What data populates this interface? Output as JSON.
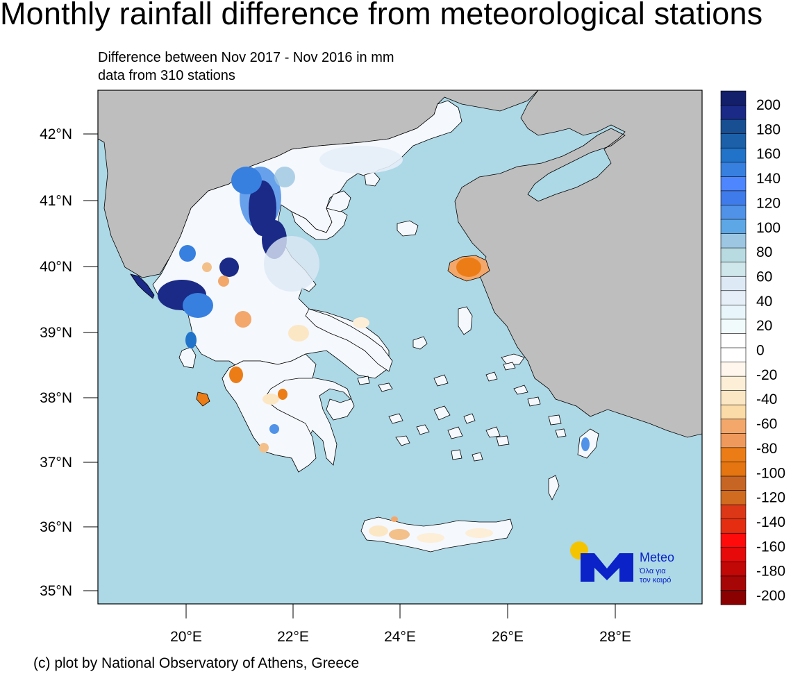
{
  "title": "Monthly rainfall difference from meteorological stations",
  "subtitle_1": "Difference between Nov 2017 - Nov 2016 in mm",
  "subtitle_2": "data from 310 stations",
  "credit": "(c) plot by National Observatory of Athens, Greece",
  "lat_labels": [
    "42°N",
    "41°N",
    "40°N",
    "39°N",
    "38°N",
    "37°N",
    "36°N",
    "35°N"
  ],
  "lon_labels": [
    "20°E",
    "22°E",
    "24°E",
    "26°E",
    "28°E"
  ],
  "colorbar": {
    "labels": [
      "200",
      "180",
      "160",
      "140",
      "120",
      "100",
      "80",
      "60",
      "40",
      "20",
      "0",
      "-20",
      "-40",
      "-60",
      "-80",
      "-100",
      "-120",
      "-140",
      "-160",
      "-180",
      "-200"
    ],
    "colors": [
      "#131f6b",
      "#1a2a86",
      "#184f93",
      "#1b60a8",
      "#2073c9",
      "#3780e0",
      "#4d86ff",
      "#3f7bea",
      "#4f92e8",
      "#5ea7e6",
      "#9cc6e1",
      "#b8dbe2",
      "#cfe6ea",
      "#dde9f5",
      "#e6eef8",
      "#e8f6fb",
      "#f2fbfc",
      "#ffffff",
      "#ffffff",
      "#fff7ee",
      "#fdeed7",
      "#fce7c4",
      "#fbdba8",
      "#f3a76a",
      "#ef9a5c",
      "#ec7d16",
      "#e47511",
      "#c76525",
      "#d06b20",
      "#dc3818",
      "#e52d12",
      "#ff0b0b",
      "#e60a0a",
      "#c20707",
      "#a60606",
      "#8b0000"
    ]
  },
  "logo": {
    "brand": "Meteo",
    "tagline_1": "Όλα για",
    "tagline_2": "τον καιρό",
    "blue": "#0a22c8",
    "sun": "#f5c400"
  },
  "colors": {
    "sea": "#add8e6",
    "foreign_land": "#bebebe",
    "greece_land": "#f5f8fd"
  }
}
